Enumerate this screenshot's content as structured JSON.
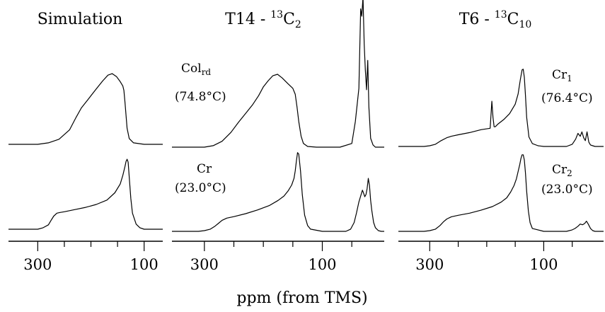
{
  "figure": {
    "xlabel": "ppm (from TMS)"
  },
  "chart_data": [
    {
      "type": "line",
      "title": "Simulation",
      "xrange": [
        355,
        65
      ],
      "major_ticks": [
        300,
        100
      ],
      "minor_ticks": [
        250,
        200,
        150
      ],
      "traces": [
        {
          "id": "sim_top",
          "label": "",
          "temp": "",
          "label_pos": "none",
          "color": "#000000",
          "x": [
            355,
            300,
            280,
            260,
            240,
            228,
            218,
            205,
            190,
            178,
            168,
            160,
            152,
            145,
            140,
            138,
            136,
            134,
            132,
            128,
            120,
            100,
            65
          ],
          "y": [
            0,
            0,
            0.02,
            0.07,
            0.2,
            0.37,
            0.5,
            0.62,
            0.76,
            0.87,
            0.95,
            0.97,
            0.93,
            0.86,
            0.8,
            0.74,
            0.58,
            0.4,
            0.22,
            0.08,
            0.02,
            0,
            0
          ]
        },
        {
          "id": "sim_bottom",
          "label": "",
          "temp": "",
          "label_pos": "none",
          "color": "#000000",
          "x": [
            355,
            300,
            290,
            280,
            275,
            270,
            264,
            258,
            250,
            230,
            210,
            190,
            170,
            155,
            145,
            140,
            136,
            134,
            132,
            130,
            128,
            125,
            122,
            115,
            108,
            100,
            85,
            65
          ],
          "y": [
            0,
            0,
            0.02,
            0.06,
            0.12,
            0.18,
            0.22,
            0.23,
            0.24,
            0.27,
            0.3,
            0.34,
            0.4,
            0.5,
            0.62,
            0.74,
            0.86,
            0.93,
            0.96,
            0.92,
            0.72,
            0.42,
            0.22,
            0.07,
            0.02,
            0,
            0,
            0
          ]
        }
      ]
    },
    {
      "type": "line",
      "title": "T14 - ",
      "title_sup": "13",
      "title_main": "C",
      "title_sub": "2",
      "xrange": [
        355,
        -5
      ],
      "major_ticks": [
        300,
        100
      ],
      "minor_ticks": [
        250,
        200,
        150,
        50
      ],
      "traces": [
        {
          "id": "t14_col",
          "label": "Col",
          "label_sub": "rd",
          "temp": "(74.8°C)",
          "label_pos": "left",
          "color": "#000000",
          "x": [
            355,
            320,
            300,
            285,
            270,
            255,
            242,
            230,
            218,
            208,
            200,
            192,
            184,
            176,
            168,
            158,
            150,
            146,
            143,
            140,
            136,
            132,
            125,
            110,
            90,
            70,
            50,
            44,
            38,
            35,
            33,
            31,
            29,
            27,
            25,
            23,
            21,
            18,
            14,
            10,
            0,
            -5
          ],
          "y": [
            0,
            0,
            0,
            0.02,
            0.08,
            0.2,
            0.34,
            0.46,
            0.58,
            0.7,
            0.82,
            0.9,
            0.97,
            0.99,
            0.94,
            0.86,
            0.8,
            0.72,
            0.55,
            0.35,
            0.15,
            0.05,
            0.01,
            0,
            0,
            0,
            0.05,
            0.35,
            0.8,
            1.88,
            1.78,
            2.04,
            1.4,
            1.05,
            0.78,
            1.18,
            0.55,
            0.12,
            0.03,
            0,
            0,
            0
          ]
        },
        {
          "id": "t14_cr",
          "label": "Cr",
          "label_sub": "",
          "temp": "(23.0°C)",
          "label_pos": "left",
          "color": "#000000",
          "x": [
            355,
            310,
            300,
            290,
            282,
            276,
            270,
            262,
            250,
            230,
            210,
            190,
            175,
            165,
            158,
            152,
            148,
            146,
            144,
            142,
            140,
            137,
            134,
            130,
            125,
            120,
            100,
            80,
            60,
            52,
            46,
            42,
            38,
            35,
            32,
            30,
            28,
            26,
            24,
            22,
            20,
            18,
            16,
            13,
            10,
            5,
            0,
            -5
          ],
          "y": [
            0,
            0,
            0.01,
            0.03,
            0.07,
            0.11,
            0.15,
            0.18,
            0.2,
            0.24,
            0.29,
            0.35,
            0.42,
            0.48,
            0.55,
            0.63,
            0.72,
            0.82,
            0.95,
            1.07,
            1.05,
            0.82,
            0.5,
            0.22,
            0.08,
            0.03,
            0,
            0,
            0,
            0.03,
            0.12,
            0.25,
            0.4,
            0.48,
            0.56,
            0.52,
            0.47,
            0.5,
            0.58,
            0.72,
            0.62,
            0.42,
            0.28,
            0.12,
            0.05,
            0.01,
            0,
            0
          ]
        }
      ]
    },
    {
      "type": "line",
      "title": "T6 - ",
      "title_sup": "13",
      "title_main": "C",
      "title_sub": "10",
      "xrange": [
        355,
        -5
      ],
      "major_ticks": [
        300,
        100
      ],
      "minor_ticks": [
        250,
        200,
        150,
        50
      ],
      "traces": [
        {
          "id": "t6_cr1",
          "label": "Cr",
          "label_sub": "1",
          "temp": "(76.4°C)",
          "label_pos": "right",
          "color": "#000000",
          "x": [
            355,
            310,
            300,
            290,
            280,
            270,
            262,
            250,
            230,
            210,
            194,
            191,
            189,
            187,
            185,
            180,
            170,
            160,
            150,
            145,
            141,
            138,
            136,
            134,
            132,
            130,
            126,
            120,
            110,
            100,
            80,
            60,
            50,
            44,
            40,
            36,
            33,
            30,
            27,
            24,
            21,
            18,
            14,
            10,
            5,
            -5
          ],
          "y": [
            0,
            0,
            0.01,
            0.03,
            0.08,
            0.12,
            0.14,
            0.16,
            0.19,
            0.23,
            0.25,
            0.62,
            0.4,
            0.27,
            0.27,
            0.31,
            0.37,
            0.45,
            0.58,
            0.72,
            0.92,
            1.05,
            1.06,
            0.95,
            0.7,
            0.4,
            0.13,
            0.04,
            0.01,
            0,
            0,
            0,
            0.03,
            0.1,
            0.18,
            0.14,
            0.2,
            0.12,
            0.08,
            0.2,
            0.06,
            0.02,
            0.01,
            0,
            0,
            0
          ]
        },
        {
          "id": "t6_cr2",
          "label": "Cr",
          "label_sub": "2",
          "temp": "(23.0°C)",
          "label_pos": "right",
          "color": "#000000",
          "x": [
            355,
            310,
            300,
            290,
            282,
            276,
            270,
            262,
            250,
            230,
            210,
            190,
            175,
            165,
            158,
            152,
            148,
            145,
            142,
            140,
            138,
            136,
            134,
            132,
            130,
            127,
            124,
            120,
            100,
            80,
            60,
            50,
            45,
            40,
            36,
            32,
            28,
            25,
            22,
            18,
            14,
            10,
            5,
            -5
          ],
          "y": [
            0,
            0,
            0.01,
            0.03,
            0.08,
            0.13,
            0.17,
            0.2,
            0.22,
            0.25,
            0.29,
            0.34,
            0.4,
            0.46,
            0.54,
            0.63,
            0.72,
            0.82,
            0.92,
            1.0,
            1.05,
            1.05,
            0.98,
            0.8,
            0.55,
            0.28,
            0.12,
            0.04,
            0,
            0,
            0,
            0.02,
            0.04,
            0.07,
            0.1,
            0.09,
            0.11,
            0.14,
            0.1,
            0.04,
            0.01,
            0,
            0,
            0
          ]
        }
      ]
    }
  ]
}
